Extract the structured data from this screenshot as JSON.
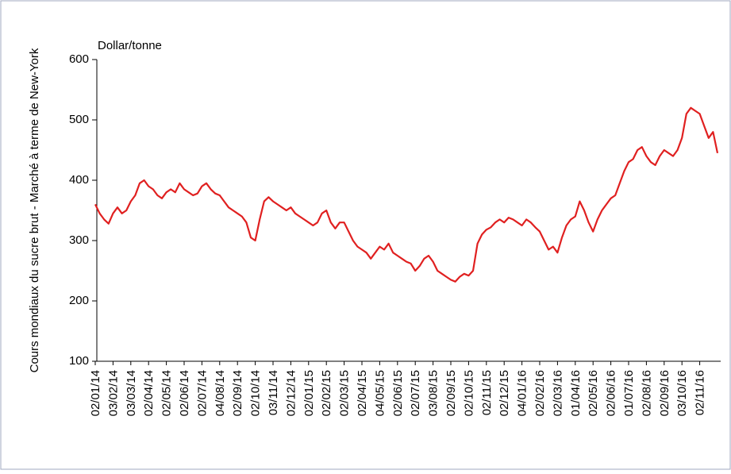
{
  "chart_data": {
    "type": "line",
    "y_axis_title": "Cours mondiaux du sucre brut - Marché à terme de New-York",
    "unit_label": "Dollar/tonne",
    "categories": [
      "02/01/14",
      null,
      null,
      null,
      "03/02/14",
      null,
      null,
      null,
      "03/03/14",
      null,
      null,
      null,
      "02/04/14",
      null,
      null,
      null,
      "02/05/14",
      null,
      null,
      null,
      "02/06/14",
      null,
      null,
      null,
      "02/07/14",
      null,
      null,
      null,
      "04/08/14",
      null,
      null,
      null,
      "02/09/14",
      null,
      null,
      null,
      "02/10/14",
      null,
      null,
      null,
      "03/11/14",
      null,
      null,
      null,
      "02/12/14",
      null,
      null,
      null,
      "02/01/15",
      null,
      null,
      null,
      "02/02/15",
      null,
      null,
      null,
      "02/03/15",
      null,
      null,
      null,
      "02/04/15",
      null,
      null,
      null,
      "04/05/15",
      null,
      null,
      null,
      "02/06/15",
      null,
      null,
      null,
      "02/07/15",
      null,
      null,
      null,
      "03/08/15",
      null,
      null,
      null,
      "02/09/15",
      null,
      null,
      null,
      "02/10/15",
      null,
      null,
      null,
      "02/11/15",
      null,
      null,
      null,
      "02/12/15",
      null,
      null,
      null,
      "04/01/16",
      null,
      null,
      null,
      "02/02/16",
      null,
      null,
      null,
      "02/03/16",
      null,
      null,
      null,
      "01/04/16",
      null,
      null,
      null,
      "02/05/16",
      null,
      null,
      null,
      "02/06/16",
      null,
      null,
      null,
      "01/07/16",
      null,
      null,
      null,
      "02/08/16",
      null,
      null,
      null,
      "02/09/16",
      null,
      null,
      null,
      "03/10/16",
      null,
      null,
      null,
      "02/11/16",
      null,
      null,
      null,
      null
    ],
    "series": [
      {
        "color": "#e02020",
        "values": [
          360,
          345,
          335,
          328,
          345,
          355,
          345,
          350,
          365,
          375,
          395,
          400,
          390,
          385,
          375,
          370,
          380,
          385,
          380,
          395,
          385,
          380,
          375,
          378,
          390,
          395,
          385,
          378,
          375,
          365,
          355,
          350,
          345,
          340,
          330,
          305,
          300,
          335,
          365,
          372,
          365,
          360,
          355,
          350,
          355,
          345,
          340,
          335,
          330,
          325,
          330,
          345,
          350,
          330,
          320,
          330,
          330,
          315,
          300,
          290,
          285,
          280,
          270,
          280,
          290,
          285,
          295,
          280,
          275,
          270,
          265,
          262,
          250,
          258,
          270,
          275,
          265,
          250,
          245,
          240,
          235,
          232,
          240,
          245,
          242,
          250,
          295,
          310,
          318,
          322,
          330,
          335,
          330,
          338,
          335,
          330,
          325,
          335,
          330,
          322,
          315,
          300,
          285,
          290,
          280,
          305,
          325,
          335,
          340,
          365,
          350,
          330,
          315,
          335,
          350,
          360,
          370,
          375,
          395,
          415,
          430,
          435,
          450,
          455,
          440,
          430,
          425,
          440,
          450,
          445,
          440,
          450,
          470,
          510,
          520,
          515,
          510,
          490,
          470,
          480,
          445
        ]
      }
    ],
    "ylim": [
      100,
      600
    ],
    "yticks": [
      100,
      200,
      300,
      400,
      500,
      600
    ]
  }
}
